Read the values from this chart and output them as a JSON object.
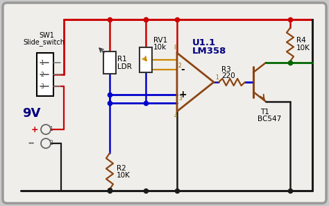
{
  "wire_red": "#cc0000",
  "wire_blue": "#0000cc",
  "wire_black": "#1a1a1a",
  "wire_gold": "#cc8800",
  "wire_green": "#006600",
  "wire_brown": "#8B4513",
  "text_dark_blue": "#000080",
  "bg_outer": "#c8c8c8",
  "bg_inner": "#f0eeea",
  "border_color": "#999999",
  "label_sw1": "SW1",
  "label_slide": "Slide_switch",
  "label_r1": "R1",
  "label_ldr": "LDR",
  "label_r2": "R2",
  "label_r2v": "10K",
  "label_rv1": "RV1",
  "label_rv1v": "10k",
  "label_u1": "U1.1",
  "label_lm358": "LM358",
  "label_r3": "R3",
  "label_r3v": "220",
  "label_t1": "T1",
  "label_bc547": "BC547",
  "label_r4": "R4",
  "label_r4v": "10K",
  "label_9v": "9V",
  "label_plus": "+",
  "label_minus": "--"
}
